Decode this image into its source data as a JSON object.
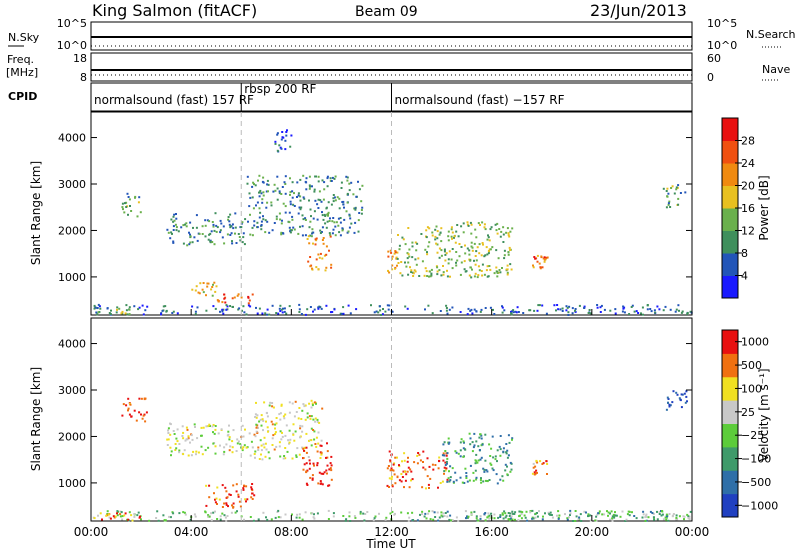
{
  "header": {
    "station": "King Salmon (fitACF)",
    "beam": "Beam 09",
    "date": "23/Jun/2013"
  },
  "noise_panel": {
    "left_label": "N.Sky",
    "left_ticks": [
      "10^5",
      "10^0"
    ],
    "right_label": "N.Search",
    "right_ticks": [
      "10^5",
      "10^0"
    ]
  },
  "freq_panel": {
    "left_label_1": "Freq.",
    "left_label_2": "[MHz]",
    "left_ticks": [
      "18",
      "8"
    ],
    "right_label": "Nave",
    "right_ticks": [
      "60",
      "0"
    ]
  },
  "cpid_panel": {
    "label": "CPID",
    "modes": [
      {
        "start_hr": 0,
        "text": "normalsound (fast) 157 RF"
      },
      {
        "start_hr": 6.0,
        "text": "rbsp 200 RF"
      },
      {
        "start_hr": 12.0,
        "text": "normalsound (fast) −157 RF"
      }
    ]
  },
  "chart_data": [
    {
      "type": "heatmap",
      "name": "power",
      "ylabel": "Slant Range [km]",
      "xlabel": "",
      "ylim": [
        180,
        4550
      ],
      "yticks": [
        "1000",
        "2000",
        "3000",
        "4000"
      ],
      "xlim_hours": [
        0,
        24
      ],
      "colorbar": {
        "label": "Power [dB]",
        "ticks": [
          "4",
          "8",
          "12",
          "16",
          "20",
          "24",
          "28"
        ],
        "colors": [
          "#1a1aff",
          "#2255b8",
          "#3f8f5c",
          "#6ab04c",
          "#e8c020",
          "#f08a10",
          "#f05010",
          "#e81010"
        ]
      },
      "patches": [
        {
          "t0": 0.0,
          "t1": 24.0,
          "r0": 200,
          "r1": 420,
          "level": 0.2
        },
        {
          "t0": 0.1,
          "t1": 2.0,
          "r0": 200,
          "r1": 340,
          "level": 0.45
        },
        {
          "t0": 1.2,
          "t1": 2.0,
          "r0": 2300,
          "r1": 2850,
          "level": 0.35
        },
        {
          "t0": 3.0,
          "t1": 6.2,
          "r0": 1700,
          "r1": 2400,
          "level": 0.3
        },
        {
          "t0": 4.0,
          "t1": 5.0,
          "r0": 600,
          "r1": 900,
          "level": 0.6
        },
        {
          "t0": 5.0,
          "t1": 6.5,
          "r0": 450,
          "r1": 650,
          "level": 0.85
        },
        {
          "t0": 6.2,
          "t1": 10.8,
          "r0": 1900,
          "r1": 3200,
          "level": 0.3
        },
        {
          "t0": 8.6,
          "t1": 9.6,
          "r0": 1150,
          "r1": 1900,
          "level": 0.65
        },
        {
          "t0": 11.8,
          "t1": 12.2,
          "r0": 1100,
          "r1": 1600,
          "level": 0.7
        },
        {
          "t0": 12.2,
          "t1": 16.8,
          "r0": 1000,
          "r1": 2200,
          "level": 0.45
        },
        {
          "t0": 17.6,
          "t1": 18.2,
          "r0": 1200,
          "r1": 1500,
          "level": 0.75
        },
        {
          "t0": 22.8,
          "t1": 23.8,
          "r0": 2500,
          "r1": 3000,
          "level": 0.35
        },
        {
          "t0": 7.3,
          "t1": 8.0,
          "r0": 3700,
          "r1": 4300,
          "level": 0.15
        }
      ]
    },
    {
      "type": "heatmap",
      "name": "velocity",
      "ylabel": "Slant Range [km]",
      "xlabel": "Time UT",
      "ylim": [
        180,
        4550
      ],
      "yticks": [
        "1000",
        "2000",
        "3000",
        "4000"
      ],
      "xticks": [
        "00:00",
        "04:00",
        "08:00",
        "12:00",
        "16:00",
        "20:00",
        "00:00"
      ],
      "xlim_hours": [
        0,
        24
      ],
      "colorbar": {
        "label": "Velocity [m s⁻¹]",
        "ticks": [
          "1000",
          "500",
          "100",
          "25",
          "−25",
          "−100",
          "−500",
          "−1000"
        ],
        "colors": [
          "#2040c0",
          "#2f6fa8",
          "#3f9a6a",
          "#5ccc3a",
          "#c8c8c8",
          "#f0e020",
          "#f07010",
          "#e81010"
        ]
      },
      "patches": [
        {
          "t0": 0.0,
          "t1": 24.0,
          "r0": 200,
          "r1": 420,
          "level": 0.45
        },
        {
          "t0": 0.1,
          "t1": 2.0,
          "r0": 200,
          "r1": 380,
          "level": 0.8
        },
        {
          "t0": 1.2,
          "t1": 2.2,
          "r0": 2300,
          "r1": 2850,
          "level": 0.9
        },
        {
          "t0": 3.0,
          "t1": 6.5,
          "r0": 1600,
          "r1": 2300,
          "level": 0.6
        },
        {
          "t0": 4.5,
          "t1": 6.5,
          "r0": 450,
          "r1": 1000,
          "level": 0.85
        },
        {
          "t0": 6.5,
          "t1": 9.2,
          "r0": 1500,
          "r1": 2800,
          "level": 0.6
        },
        {
          "t0": 8.4,
          "t1": 9.6,
          "r0": 900,
          "r1": 1900,
          "level": 0.95
        },
        {
          "t0": 11.8,
          "t1": 14.2,
          "r0": 900,
          "r1": 1700,
          "level": 0.85
        },
        {
          "t0": 14.0,
          "t1": 16.8,
          "r0": 1000,
          "r1": 2100,
          "level": 0.3
        },
        {
          "t0": 17.6,
          "t1": 18.2,
          "r0": 1200,
          "r1": 1500,
          "level": 0.75
        },
        {
          "t0": 22.8,
          "t1": 23.8,
          "r0": 2500,
          "r1": 3000,
          "level": 0.1
        },
        {
          "t0": 12.5,
          "t1": 24.0,
          "r0": 200,
          "r1": 420,
          "level": 0.35
        }
      ]
    }
  ]
}
